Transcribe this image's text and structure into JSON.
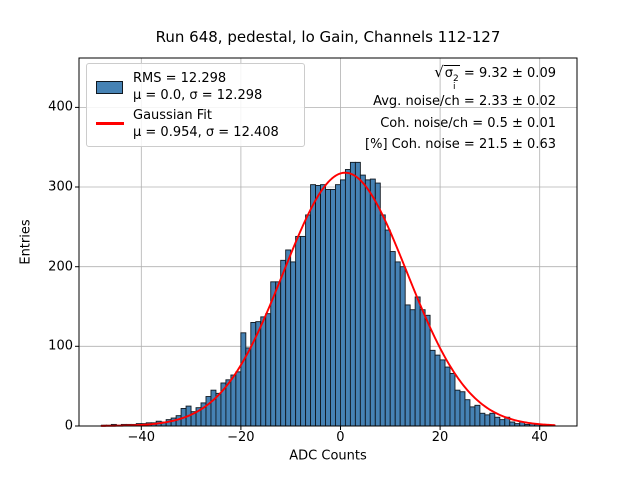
{
  "title": "Run 648, pedestal, lo Gain, Channels 112-127",
  "axes": {
    "xlabel": "ADC Counts",
    "ylabel": "Entries",
    "xlim": [
      -52.5,
      47.5
    ],
    "ylim": [
      0,
      462
    ],
    "x_ticks": [
      -40,
      -20,
      0,
      20,
      40
    ],
    "x_tick_labels": [
      "−40",
      "−20",
      "0",
      "20",
      "40"
    ],
    "y_ticks": [
      0,
      100,
      200,
      300,
      400
    ],
    "y_tick_labels": [
      "0",
      "100",
      "200",
      "300",
      "400"
    ]
  },
  "legend": {
    "hist_line1": "RMS = 12.298",
    "hist_line2": "μ = 0.0, σ = 12.298",
    "fit_line1": "Gaussian Fit",
    "fit_line2": "μ = 0.954, σ = 12.408"
  },
  "annotations": {
    "radicand_symbol": "σ",
    "radicand_sup": "2",
    "radicand_sub": "i",
    "total_noise_value": " = 9.32 ± 0.09",
    "avg_noise": "Avg. noise/ch = 2.33 ± 0.02",
    "coh_noise": "Coh. noise/ch = 0.5 ± 0.01",
    "coh_noise_pct": "[%] Coh. noise = 21.5 ± 0.63"
  },
  "chart_data": {
    "type": "bar",
    "subtype": "histogram",
    "title": "Run 648, pedestal, lo Gain, Channels 112-127",
    "xlabel": "ADC Counts",
    "ylabel": "Entries",
    "xlim": [
      -52.5,
      47.5
    ],
    "ylim": [
      0,
      462
    ],
    "grid": true,
    "legend_position": "upper left",
    "bin_width": 1,
    "bin_start": -48,
    "counts": [
      1,
      1,
      2,
      1,
      2,
      2,
      2,
      3,
      3,
      4,
      4,
      6,
      5,
      8,
      10,
      13,
      22,
      25,
      18,
      23,
      29,
      37,
      45,
      41,
      54,
      58,
      64,
      68,
      117,
      98,
      130,
      131,
      137,
      141,
      181,
      181,
      208,
      221,
      206,
      238,
      238,
      265,
      303,
      302,
      303,
      297,
      297,
      303,
      309,
      322,
      331,
      331,
      315,
      309,
      310,
      305,
      265,
      246,
      219,
      206,
      200,
      152,
      146,
      162,
      146,
      139,
      95,
      89,
      83,
      74,
      66,
      45,
      43,
      33,
      24,
      26,
      16,
      14,
      16,
      11,
      8,
      11,
      5,
      3,
      5,
      2,
      3,
      2,
      1,
      2,
      1
    ],
    "hist_stats": {
      "rms": 12.298,
      "mu": 0.0,
      "sigma": 12.298
    },
    "gaussian_fit": {
      "amplitude": 318,
      "mu": 0.954,
      "sigma": 12.408,
      "x_min": -48,
      "x_max": 43
    },
    "stats_box": {
      "sqrt_mean_sigma2": "9.32 ± 0.09",
      "avg_noise_per_ch": "2.33 ± 0.02",
      "coh_noise_per_ch": "0.5 ± 0.01",
      "coh_noise_percent": "21.5 ± 0.63"
    },
    "colors": {
      "bar_fill": "#4682b4",
      "bar_edge": "#101820",
      "fit_line": "#ff0000",
      "grid": "#b0b0b0",
      "spine": "#000000",
      "background": "#ffffff"
    }
  }
}
